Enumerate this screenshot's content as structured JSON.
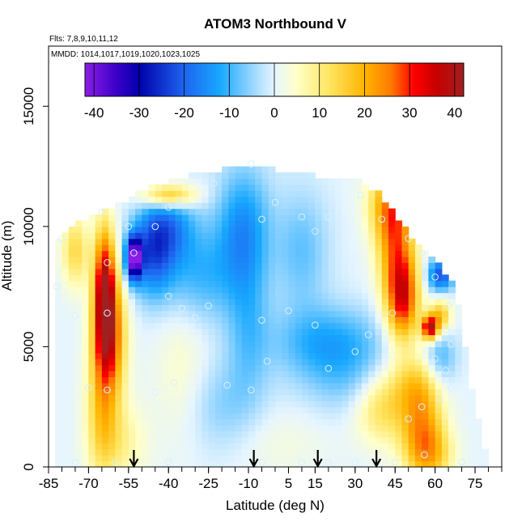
{
  "chart_data": {
    "type": "heatmap",
    "title": "ATOM3 Northbound V",
    "subtitle_flights": "Flts: 7,8,9,10,11,12",
    "subtitle_dates": "MMDD: 1014,1017,1019,1020,1023,1025",
    "xlabel": "Latitude (deg N)",
    "ylabel": "Altitude (m)",
    "xlim": [
      -85,
      85
    ],
    "ylim": [
      0,
      17500
    ],
    "x_ticks": [
      -85,
      -70,
      -55,
      -40,
      -25,
      -10,
      5,
      15,
      30,
      45,
      60,
      75
    ],
    "x_tick_labels": [
      "-85",
      "-70",
      "-55",
      "-40",
      "-25",
      "-10",
      "5",
      "15",
      "30",
      "45",
      "60",
      "75"
    ],
    "y_ticks": [
      0,
      5000,
      10000,
      15000
    ],
    "y_tick_labels": [
      "0",
      "5000",
      "10000",
      "15000"
    ],
    "colorbar": {
      "range": [
        -42,
        42
      ],
      "tick_values": [
        -40,
        -30,
        -20,
        -10,
        0,
        10,
        20,
        30,
        40
      ],
      "tick_labels": [
        "-40",
        "-30",
        "-20",
        "-10",
        "0",
        "10",
        "20",
        "30",
        "40"
      ],
      "stops": [
        {
          "v": -42,
          "color": "#8b1ee6"
        },
        {
          "v": -35,
          "color": "#3c00c8"
        },
        {
          "v": -30,
          "color": "#0000aa"
        },
        {
          "v": -20,
          "color": "#1e64f0"
        },
        {
          "v": -12,
          "color": "#18a8ff"
        },
        {
          "v": -4,
          "color": "#a8dcff"
        },
        {
          "v": 0,
          "color": "#e6f5ff"
        },
        {
          "v": 5,
          "color": "#ffffc8"
        },
        {
          "v": 12,
          "color": "#ffe664"
        },
        {
          "v": 20,
          "color": "#ffb400"
        },
        {
          "v": 26,
          "color": "#ff7800"
        },
        {
          "v": 31,
          "color": "#ff0000"
        },
        {
          "v": 36,
          "color": "#c80000"
        },
        {
          "v": 42,
          "color": "#a02020"
        }
      ]
    },
    "arrow_latitudes": [
      -53,
      -8,
      16,
      38
    ],
    "envelope_top": [
      {
        "lat": -82,
        "alt": 9500
      },
      {
        "lat": -75,
        "alt": 10200
      },
      {
        "lat": -66,
        "alt": 10600
      },
      {
        "lat": -58,
        "alt": 11000
      },
      {
        "lat": -50,
        "alt": 11500
      },
      {
        "lat": -40,
        "alt": 11900
      },
      {
        "lat": -26,
        "alt": 12300
      },
      {
        "lat": -10,
        "alt": 12500
      },
      {
        "lat": 5,
        "alt": 12300
      },
      {
        "lat": 20,
        "alt": 12000
      },
      {
        "lat": 32,
        "alt": 11900
      },
      {
        "lat": 38,
        "alt": 11500
      },
      {
        "lat": 46,
        "alt": 10300
      },
      {
        "lat": 52,
        "alt": 9400
      },
      {
        "lat": 58,
        "alt": 8800
      },
      {
        "lat": 63,
        "alt": 8200
      },
      {
        "lat": 67,
        "alt": 7500
      },
      {
        "lat": 70,
        "alt": 6000
      },
      {
        "lat": 72,
        "alt": 4500
      },
      {
        "lat": 74,
        "alt": 3000
      },
      {
        "lat": 77,
        "alt": 1500
      },
      {
        "lat": 80,
        "alt": 0
      }
    ],
    "envelope_left": [
      {
        "lat": -82,
        "alt": 0
      },
      {
        "lat": -84,
        "alt": 3000
      },
      {
        "lat": -86,
        "alt": 5000
      },
      {
        "lat": -84,
        "alt": 7500
      },
      {
        "lat": -82,
        "alt": 9500
      }
    ],
    "wind_features": [
      {
        "lat": -64,
        "alt": 7500,
        "v": 34,
        "rlat": 4,
        "ralt": 2600
      },
      {
        "lat": -62,
        "alt": 5500,
        "v": 26,
        "rlat": 6,
        "ralt": 2500
      },
      {
        "lat": -65,
        "alt": 2500,
        "v": 14,
        "rlat": 6,
        "ralt": 3000
      },
      {
        "lat": -58,
        "alt": 1000,
        "v": 8,
        "rlat": 10,
        "ralt": 1800
      },
      {
        "lat": -53,
        "alt": 8700,
        "v": -40,
        "rlat": 3,
        "ralt": 900
      },
      {
        "lat": -46,
        "alt": 8800,
        "v": -18,
        "rlat": 8,
        "ralt": 1800
      },
      {
        "lat": -40,
        "alt": 10000,
        "v": -14,
        "rlat": 10,
        "ralt": 1500
      },
      {
        "lat": -40,
        "alt": 11300,
        "v": 22,
        "rlat": 10,
        "ralt": 500
      },
      {
        "lat": -28,
        "alt": 8000,
        "v": -10,
        "rlat": 14,
        "ralt": 2000
      },
      {
        "lat": -12,
        "alt": 10000,
        "v": -14,
        "rlat": 10,
        "ralt": 2500
      },
      {
        "lat": -10,
        "alt": 6000,
        "v": -8,
        "rlat": 8,
        "ralt": 3000
      },
      {
        "lat": 10,
        "alt": 9000,
        "v": -8,
        "rlat": 10,
        "ralt": 2500
      },
      {
        "lat": 20,
        "alt": 5200,
        "v": -12,
        "rlat": 20,
        "ralt": 1500
      },
      {
        "lat": 30,
        "alt": 3500,
        "v": -6,
        "rlat": 20,
        "ralt": 1500
      },
      {
        "lat": -35,
        "alt": 4000,
        "v": 5,
        "rlat": 10,
        "ralt": 3000
      },
      {
        "lat": 45,
        "alt": 9500,
        "v": 22,
        "rlat": 7,
        "ralt": 2500
      },
      {
        "lat": 48,
        "alt": 7000,
        "v": 30,
        "rlat": 6,
        "ralt": 1800
      },
      {
        "lat": 42,
        "alt": 11000,
        "v": 14,
        "rlat": 8,
        "ralt": 1500
      },
      {
        "lat": 58,
        "alt": 5800,
        "v": 38,
        "rlat": 3,
        "ralt": 500
      },
      {
        "lat": 62,
        "alt": 6300,
        "v": 18,
        "rlat": 4,
        "ralt": 700
      },
      {
        "lat": 55,
        "alt": 1500,
        "v": 22,
        "rlat": 8,
        "ralt": 2000
      },
      {
        "lat": 40,
        "alt": 2500,
        "v": 14,
        "rlat": 10,
        "ralt": 1500
      },
      {
        "lat": 52,
        "alt": 3500,
        "v": 12,
        "rlat": 10,
        "ralt": 1200
      },
      {
        "lat": 62,
        "alt": 8000,
        "v": -22,
        "rlat": 5,
        "ralt": 700
      },
      {
        "lat": 62,
        "alt": 4500,
        "v": -10,
        "rlat": 6,
        "ralt": 1200
      },
      {
        "lat": 60,
        "alt": 500,
        "v": 10,
        "rlat": 8,
        "ralt": 1200
      },
      {
        "lat": -75,
        "alt": 9000,
        "v": 14,
        "rlat": 5,
        "ralt": 1500
      },
      {
        "lat": -20,
        "alt": 2500,
        "v": -6,
        "rlat": 15,
        "ralt": 2000
      },
      {
        "lat": 0,
        "alt": 1000,
        "v": 3,
        "rlat": 20,
        "ralt": 1500
      }
    ],
    "obs_points": [
      {
        "lat": -53,
        "alt": 8900
      },
      {
        "lat": -45,
        "alt": 10000
      },
      {
        "lat": -36,
        "alt": 11100
      },
      {
        "lat": -23,
        "alt": 11800
      },
      {
        "lat": -9,
        "alt": 12600
      },
      {
        "lat": 0,
        "alt": 11000
      },
      {
        "lat": -5,
        "alt": 10300
      },
      {
        "lat": 10,
        "alt": 10400
      },
      {
        "lat": 20,
        "alt": 10400
      },
      {
        "lat": 15,
        "alt": 9800
      },
      {
        "lat": 32,
        "alt": 11300
      },
      {
        "lat": 40,
        "alt": 10300
      },
      {
        "lat": 50,
        "alt": 9500
      },
      {
        "lat": 55,
        "alt": 8900
      },
      {
        "lat": 60,
        "alt": 7900
      },
      {
        "lat": 65,
        "alt": 6700
      },
      {
        "lat": 64,
        "alt": 5700
      },
      {
        "lat": 66,
        "alt": 5100
      },
      {
        "lat": 60,
        "alt": 4500
      },
      {
        "lat": 64,
        "alt": 4000
      },
      {
        "lat": 66,
        "alt": 3300
      },
      {
        "lat": 50,
        "alt": 2000
      },
      {
        "lat": 55,
        "alt": 2500
      },
      {
        "lat": 62,
        "alt": 2800
      },
      {
        "lat": 70,
        "alt": 200
      },
      {
        "lat": 56,
        "alt": 500
      },
      {
        "lat": 45,
        "alt": 200
      },
      {
        "lat": 30,
        "alt": 200
      },
      {
        "lat": 20,
        "alt": 200
      },
      {
        "lat": 10,
        "alt": 200
      },
      {
        "lat": -5,
        "alt": 200
      },
      {
        "lat": -20,
        "alt": 200
      },
      {
        "lat": -40,
        "alt": 200
      },
      {
        "lat": -60,
        "alt": 200
      },
      {
        "lat": -75,
        "alt": 200
      },
      {
        "lat": -70,
        "alt": 3300
      },
      {
        "lat": -38,
        "alt": 3500
      },
      {
        "lat": -45,
        "alt": 3100
      },
      {
        "lat": -18,
        "alt": 3400
      },
      {
        "lat": -9,
        "alt": 3200
      },
      {
        "lat": 5,
        "alt": 2400
      },
      {
        "lat": 20,
        "alt": 4100
      },
      {
        "lat": -3,
        "alt": 4400
      },
      {
        "lat": 30,
        "alt": 4800
      },
      {
        "lat": 35,
        "alt": 5500
      },
      {
        "lat": 15,
        "alt": 5900
      },
      {
        "lat": -35,
        "alt": 6600
      },
      {
        "lat": -40,
        "alt": 7100
      },
      {
        "lat": -25,
        "alt": 6700
      },
      {
        "lat": -5,
        "alt": 6100
      },
      {
        "lat": 5,
        "alt": 6500
      },
      {
        "lat": 44,
        "alt": 6400
      },
      {
        "lat": -63,
        "alt": 8500
      },
      {
        "lat": -63,
        "alt": 6400
      },
      {
        "lat": -63,
        "alt": 3200
      },
      {
        "lat": -75,
        "alt": 6300
      },
      {
        "lat": -82,
        "alt": 7500
      },
      {
        "lat": -80,
        "alt": 9500
      },
      {
        "lat": -65,
        "alt": 10600
      },
      {
        "lat": -55,
        "alt": 10000
      },
      {
        "lat": -40,
        "alt": 10800
      },
      {
        "lat": -30,
        "alt": 6200
      }
    ],
    "obs_point_color": "#d8f0ff"
  }
}
